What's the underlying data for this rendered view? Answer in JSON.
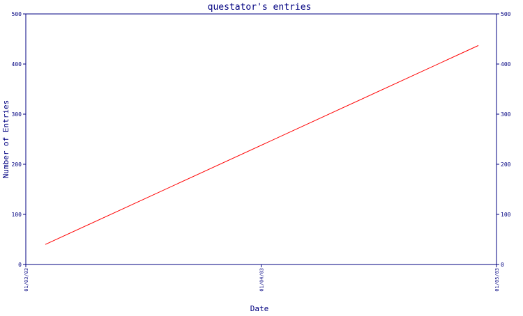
{
  "chart_data": {
    "type": "line",
    "title": "questator's entries",
    "xlabel": "Date",
    "ylabel": "Number of Entries",
    "x_tick_labels": [
      "01/03/03",
      "01/04/03",
      "01/05/03"
    ],
    "y_ticks": [
      0,
      100,
      200,
      300,
      400,
      500
    ],
    "ylim": [
      0,
      500
    ],
    "grid": false,
    "series": [
      {
        "x": [
          "01/03/03",
          "01/05/03"
        ],
        "values": [
          40,
          437
        ]
      }
    ],
    "colors": {
      "axis": "#000080",
      "line": "#ff0000",
      "text": "#000080"
    }
  }
}
